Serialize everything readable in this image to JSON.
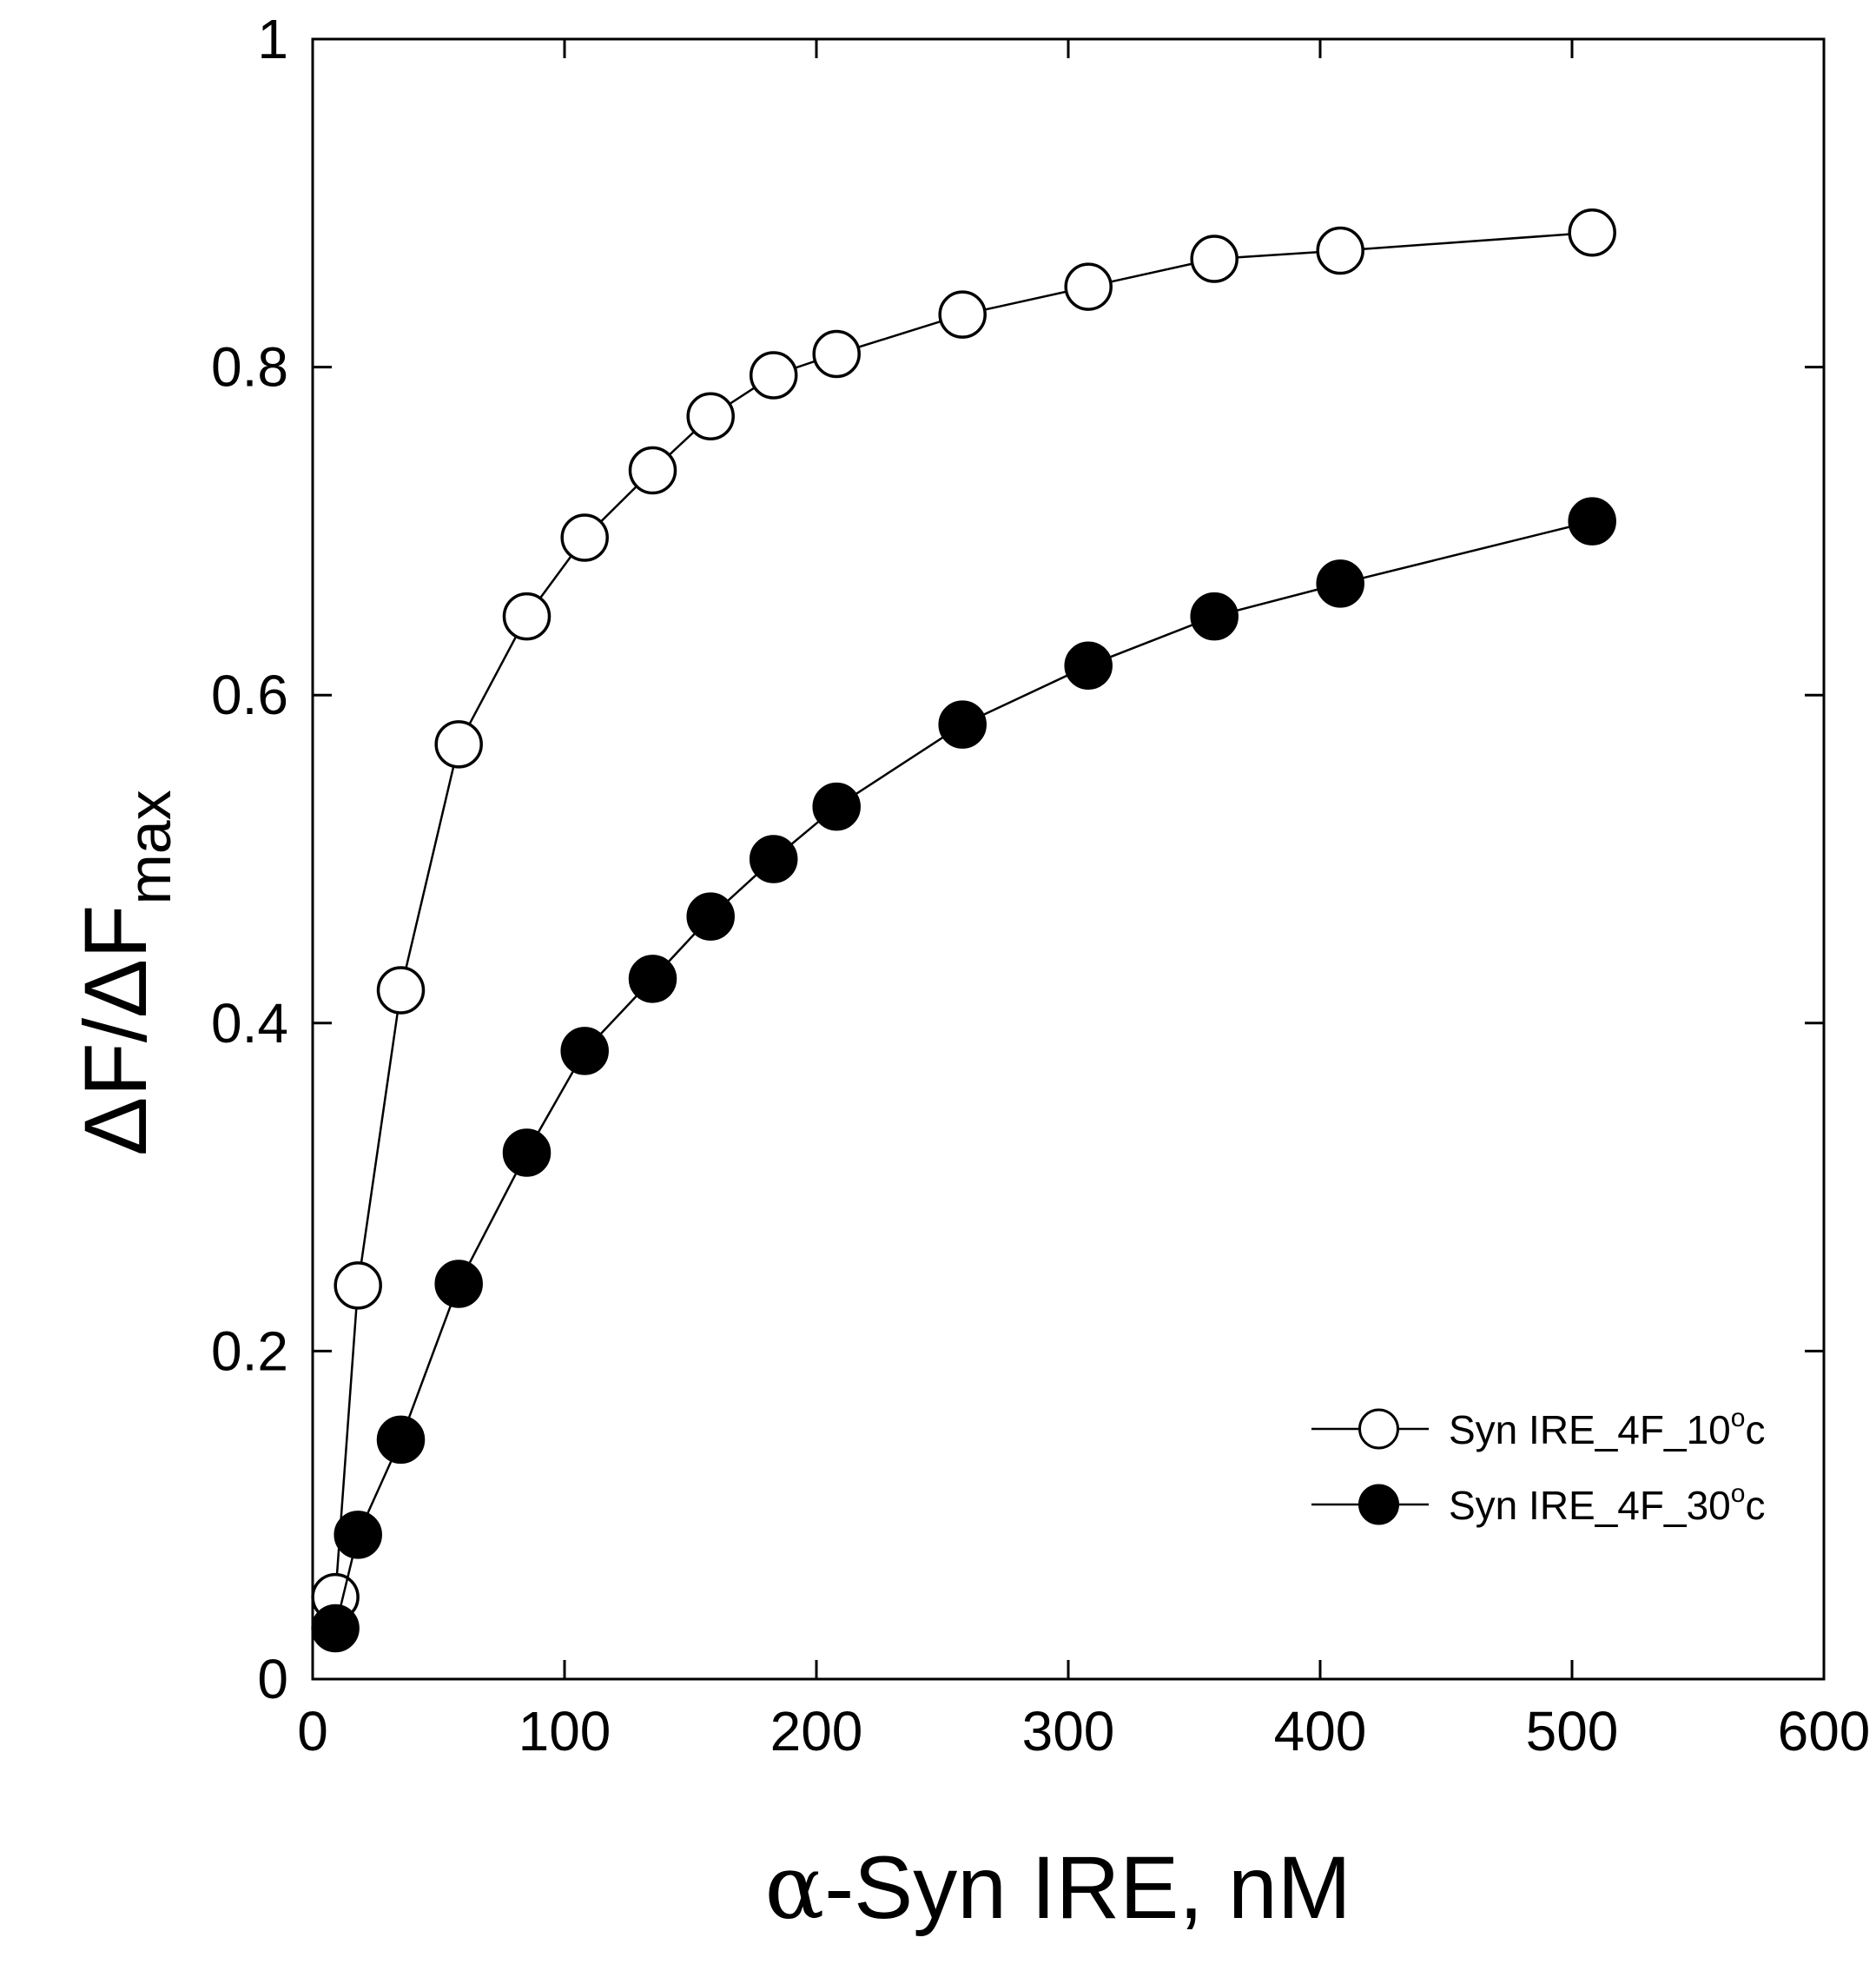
{
  "chart_data": {
    "type": "line",
    "title": "",
    "xlabel": "α-Syn IRE, nM",
    "xlabel_symbol": "α",
    "xlabel_rest": "-Syn IRE, nM",
    "ylabel": "ΔF/ΔFmax",
    "ylabel_main": "ΔF/ΔF",
    "ylabel_sub": "max",
    "xlim": [
      0,
      600
    ],
    "ylim": [
      0,
      1
    ],
    "xticks": [
      0,
      100,
      200,
      300,
      400,
      500,
      600
    ],
    "yticks": [
      0,
      0.2,
      0.4,
      0.6,
      0.8,
      1
    ],
    "xtick_labels": [
      "0",
      "100",
      "200",
      "300",
      "400",
      "500",
      "600"
    ],
    "ytick_labels": [
      "0",
      "0.2",
      "0.4",
      "0.6",
      "0.8",
      "1"
    ],
    "grid": false,
    "legend_position": "bottom-right",
    "series": [
      {
        "name": "Syn IRE_4F_10°c",
        "legend_main": "Syn IRE_4F_10",
        "legend_sup": "o",
        "legend_tail": "c",
        "marker": "open-circle",
        "color": "#000000",
        "x": [
          9,
          18,
          35,
          58,
          85,
          108,
          135,
          158,
          183,
          208,
          258,
          308,
          358,
          408,
          508
        ],
        "y": [
          0.05,
          0.24,
          0.42,
          0.57,
          0.648,
          0.696,
          0.737,
          0.77,
          0.795,
          0.808,
          0.832,
          0.849,
          0.866,
          0.871,
          0.882
        ]
      },
      {
        "name": "Syn IRE_4F_30°c",
        "legend_main": "Syn IRE_4F_30",
        "legend_sup": "o",
        "legend_tail": "c",
        "marker": "filled-circle",
        "color": "#000000",
        "x": [
          9,
          18,
          35,
          58,
          85,
          108,
          135,
          158,
          183,
          208,
          258,
          308,
          358,
          408,
          508
        ],
        "y": [
          0.031,
          0.088,
          0.146,
          0.241,
          0.321,
          0.383,
          0.427,
          0.465,
          0.5,
          0.532,
          0.582,
          0.618,
          0.648,
          0.668,
          0.706
        ]
      }
    ]
  }
}
